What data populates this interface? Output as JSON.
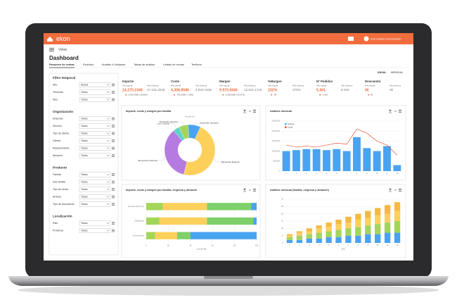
{
  "header": {
    "logo": "ekon",
    "user": "Eval Usuario Demostración"
  },
  "menu": "Vistas",
  "title": "Dashboard",
  "tabs": [
    "Resumen de ventas",
    "Evolutivo",
    "Análisis 4 Unidades",
    "Tablas de análisis",
    "Listado de ventas",
    "Territorio"
  ],
  "period": [
    "ANUAL",
    "MENSUAL"
  ],
  "filters": [
    {
      "title": "Filtro temporal",
      "fields": [
        {
          "label": "Año",
          "value": "Actual"
        },
        {
          "label": "Trimestre",
          "value": "Todos"
        },
        {
          "label": "Mes",
          "value": "Todos"
        }
      ]
    },
    {
      "title": "Organización",
      "fields": [
        {
          "label": "Empresa",
          "value": "Todos"
        },
        {
          "label": "Sección",
          "value": "Todos"
        },
        {
          "label": "Tipo de cliente",
          "value": "Todos"
        },
        {
          "label": "Cliente",
          "value": "Todos"
        },
        {
          "label": "Representante",
          "value": "Todos"
        },
        {
          "label": "Almacén",
          "value": "Todos"
        }
      ]
    },
    {
      "title": "Producto",
      "fields": [
        {
          "label": "Familia",
          "value": "Todos"
        },
        {
          "label": "Sub-familia",
          "value": "Todos"
        },
        {
          "label": "Tipo de venta",
          "value": "Todos"
        },
        {
          "label": "Artículo",
          "value": "Todos"
        },
        {
          "label": "Tipo de documento",
          "value": "Todos"
        }
      ]
    },
    {
      "title": "Localización",
      "fields": [
        {
          "label": "País",
          "value": "Todos"
        },
        {
          "label": "Provincia",
          "value": "Todos"
        }
      ]
    }
  ],
  "kpis": [
    {
      "label": "Importe",
      "current_label": "Año actual",
      "previous_label": "Año Anterior",
      "current": "14.270.234€",
      "previous": "17.161.324€",
      "delta": "-2.891.090€ (-16,85%)"
    },
    {
      "label": "Coste",
      "current_label": "Año actual",
      "previous_label": "Año Anterior",
      "current": "4.306.858€",
      "previous": "4.640.153€",
      "delta": "-333.295€ (-7,18%)"
    },
    {
      "label": "Margen",
      "current_label": "Año actual",
      "previous_label": "Año Anterior",
      "current": "9.970.566€",
      "previous": "12.521.171€",
      "delta": "-2.550.605€ (-20,37%)"
    },
    {
      "label": "%Margen",
      "current_label": "Año actual",
      "previous_label": "Año Anterior",
      "current": "232%",
      "previous": "270%",
      "delta": "-38"
    },
    {
      "label": "Nº Pedidos",
      "current_label": "Año actual",
      "previous_label": "Año Anterior",
      "current": "5.401",
      "previous": "6.443",
      "delta": "-1.042"
    },
    {
      "label": "Descuento",
      "current_label": "Año actual",
      "previous_label": "Año Anterior",
      "current": "0€",
      "previous": "0€",
      "delta": "0€"
    }
  ],
  "chart_data": [
    {
      "type": "pie",
      "title": "Importe, coste y margen por familia",
      "subtitle": "Importe (€)",
      "categories": [
        "Luz y Sonido",
        "Dimensión eléctrica",
        "Desarrollo Sectorial",
        "Elementos Eugenio",
        "Elementos Interiores"
      ],
      "values": [
        4,
        6,
        8,
        47,
        35
      ],
      "colors": [
        "#5ed3c8",
        "#a3d55a",
        "#4aa3f0",
        "#fdd05b",
        "#b57be0"
      ]
    },
    {
      "type": "combo",
      "title": "Análisis mensual",
      "categories": [
        "1",
        "2",
        "3",
        "4",
        "5",
        "6",
        "7",
        "8",
        "9",
        "10",
        "11",
        "12"
      ],
      "series": [
        {
          "name": "Importe",
          "type": "bar",
          "color": "#4aa3f0",
          "values": [
            1000000,
            1050000,
            1100000,
            1100000,
            1050000,
            1100000,
            1000000,
            1700000,
            1150000,
            1000000,
            1250000,
            300000
          ]
        },
        {
          "name": "Coste",
          "type": "line",
          "color": "#e8553e",
          "values": [
            1300000,
            1200000,
            1250000,
            1200000,
            1300000,
            1400000,
            1350000,
            2100000,
            1900000,
            1500000,
            1300000,
            800000
          ]
        }
      ],
      "ylim": [
        0,
        2500000
      ],
      "yticks": [
        {
          "value": 0,
          "label": "0"
        },
        {
          "value": 500000,
          "label": "500.000"
        },
        {
          "value": 1000000,
          "label": "1.000.000"
        },
        {
          "value": 1500000,
          "label": "1.500.000"
        },
        {
          "value": 2000000,
          "label": "2.000.000"
        },
        {
          "value": 2500000,
          "label": "2.500.000"
        }
      ],
      "grid": true
    },
    {
      "type": "barh",
      "title": "Importe, coste y margen por familia, empresa y almacén",
      "xlabel": "Importe (€)",
      "categories": [
        "Empresa Norte S.A.",
        "Distribución",
        "Comercial Sur"
      ],
      "series": [
        {
          "color": "#a3d55a",
          "values": [
            15,
            12,
            8
          ]
        },
        {
          "color": "#fdd05b",
          "values": [
            40,
            43,
            20
          ]
        },
        {
          "color": "#7ed06a",
          "values": [
            40,
            42,
            12
          ]
        },
        {
          "color": "#4aa3f0",
          "values": [
            5,
            3,
            60
          ]
        }
      ],
      "xlim": [
        0,
        100
      ],
      "xticks": [
        0,
        20,
        40,
        60,
        80,
        100
      ],
      "grid": true
    },
    {
      "type": "stacked",
      "title": "Análisis mensual (familia, empresa y almacén)",
      "xlabel": "Mes",
      "categories": [
        "1",
        "2",
        "3",
        "4",
        "5",
        "6",
        "7",
        "8",
        "9",
        "10",
        "11",
        "12"
      ],
      "series": [
        {
          "color": "#4aa3f0",
          "values": [
            2,
            2,
            3,
            3,
            4,
            4,
            5,
            5,
            6,
            6,
            7,
            7
          ]
        },
        {
          "color": "#a3d55a",
          "values": [
            2,
            3,
            3,
            4,
            4,
            5,
            5,
            6,
            6,
            7,
            7,
            8
          ]
        },
        {
          "color": "#fdd05b",
          "values": [
            1,
            2,
            2,
            3,
            3,
            4,
            4,
            5,
            5,
            6,
            6,
            7
          ]
        },
        {
          "color": "#f5b942",
          "values": [
            1,
            1,
            2,
            2,
            3,
            3,
            4,
            4,
            5,
            5,
            6,
            6
          ]
        }
      ],
      "ylim": [
        0,
        30
      ],
      "yticks": [
        0,
        5,
        10,
        15,
        20,
        25,
        30
      ],
      "grid": true
    }
  ]
}
